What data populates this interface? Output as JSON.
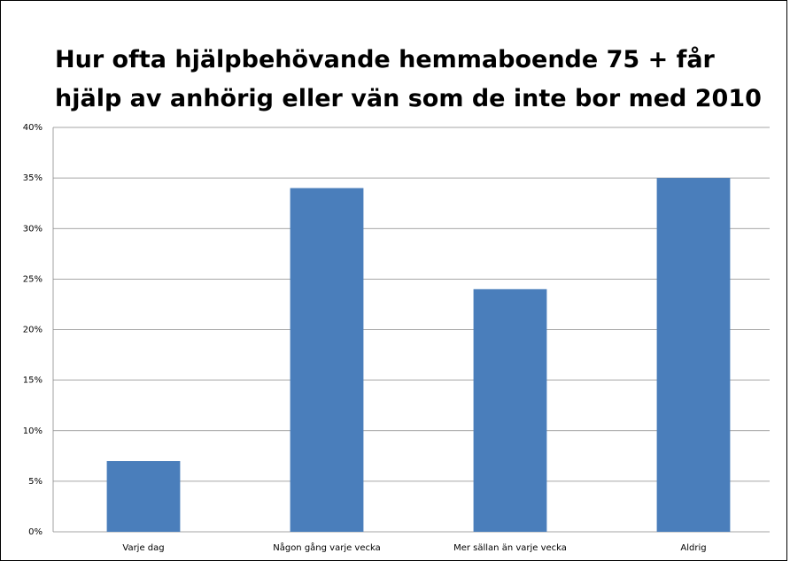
{
  "chart_data": {
    "type": "bar",
    "title": "Hur ofta hjälpbehövande hemmaboende 75 + får hjälp av anhörig eller vän som de inte bor med 2010",
    "categories": [
      "Varje dag",
      "Någon gång varje vecka",
      "Mer sällan än varje vecka",
      "Aldrig"
    ],
    "values": [
      7,
      34,
      24,
      35
    ],
    "color": "#4a7ebb",
    "ylim": [
      0,
      40
    ],
    "yticks": [
      {
        "value": 0,
        "label": "0%"
      },
      {
        "value": 5,
        "label": "5%"
      },
      {
        "value": 10,
        "label": "10%"
      },
      {
        "value": 15,
        "label": "15%"
      },
      {
        "value": 20,
        "label": "20%"
      },
      {
        "value": 25,
        "label": "25%"
      },
      {
        "value": 30,
        "label": "30%"
      },
      {
        "value": 35,
        "label": "35%"
      },
      {
        "value": 40,
        "label": "40%"
      }
    ],
    "grid": true
  }
}
